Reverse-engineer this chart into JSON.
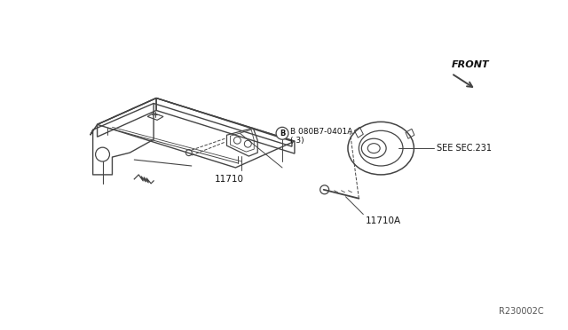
{
  "background_color": "#ffffff",
  "fig_width": 6.4,
  "fig_height": 3.72,
  "dpi": 100,
  "labels": {
    "front_text": "FRONT",
    "bolt_label_line1": "B 080B7-0401A",
    "bolt_label_line2": "( 3)",
    "bracket_label": "11710",
    "bolt2_label": "11710A",
    "sec_label": "SEE SEC.231",
    "ref_code": "R230002C"
  },
  "line_color": "#444444",
  "text_color": "#111111"
}
